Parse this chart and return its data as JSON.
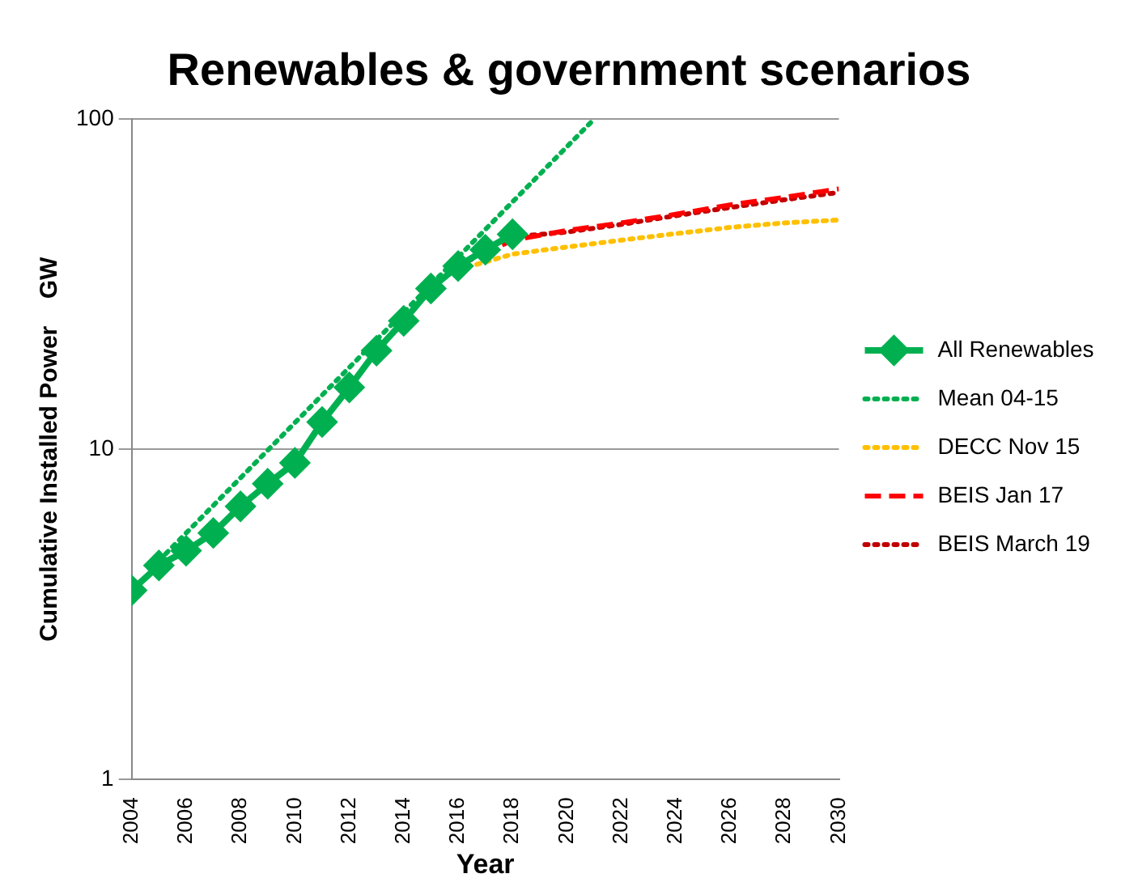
{
  "chart_data": {
    "type": "line",
    "title": "Renewables & government scenarios",
    "xlabel": "Year",
    "ylabel": "Cumulative Installed Power    GW",
    "xlim": [
      2004,
      2030
    ],
    "xticks": [
      2004,
      2006,
      2008,
      2010,
      2012,
      2014,
      2016,
      2018,
      2020,
      2022,
      2024,
      2026,
      2028,
      2030
    ],
    "ylim": [
      1,
      100
    ],
    "yticks": [
      1,
      10,
      100
    ],
    "log": "y",
    "grid": "y",
    "legend": "right",
    "series": [
      {
        "name": "All Renewables",
        "color": "#00b050",
        "marker": "diamond",
        "line_style": "solid",
        "x": [
          2004,
          2005,
          2006,
          2007,
          2008,
          2009,
          2010,
          2011,
          2012,
          2013,
          2014,
          2015,
          2016,
          2017,
          2018
        ],
        "values": [
          3.74,
          4.45,
          4.93,
          5.58,
          6.72,
          7.87,
          9.1,
          12.1,
          15.4,
          19.9,
          24.5,
          30.7,
          35.9,
          40.2,
          44.8
        ]
      },
      {
        "name": "Mean 04-15",
        "color": "#00b050",
        "marker": "none",
        "line_style": "dotted",
        "x": [
          2005,
          2021
        ],
        "values": [
          4.6,
          100
        ]
      },
      {
        "name": "DECC Nov 15",
        "color": "#ffc000",
        "marker": "none",
        "line_style": "dotted",
        "x": [
          2016,
          2018,
          2020,
          2022,
          2024,
          2026,
          2028,
          2030
        ],
        "values": [
          35,
          39,
          41,
          43,
          45,
          47,
          48.5,
          49.5
        ]
      },
      {
        "name": "BEIS Jan 17",
        "color": "#ff0000",
        "marker": "none",
        "line_style": "dashed",
        "x": [
          2016,
          2018,
          2020,
          2022,
          2024,
          2026,
          2028,
          2030
        ],
        "values": [
          36,
          43,
          46,
          48.5,
          51.5,
          55,
          58,
          61.5
        ]
      },
      {
        "name": "BEIS March 19",
        "color": "#c00000",
        "marker": "none",
        "line_style": "dotted",
        "x": [
          2018,
          2020,
          2022,
          2024,
          2026,
          2028,
          2030
        ],
        "values": [
          44,
          45.5,
          48,
          51,
          54,
          57,
          60
        ]
      }
    ]
  }
}
